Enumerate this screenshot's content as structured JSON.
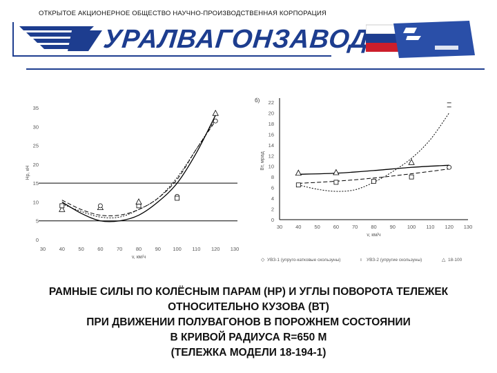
{
  "header": {
    "organization": "ОТКРЫТОЕ АКЦИОНЕРНОЕ ОБЩЕСТВО НАУЧНО-ПРОИЗВОДСТВЕННАЯ КОРПОРАЦИЯ",
    "brand": "УРАЛВАГОНЗАВОД",
    "brand_color": "#1d3d8f"
  },
  "chart_data": [
    {
      "type": "line",
      "title": "",
      "xlabel": "v, км/ч",
      "ylabel": "Нр, кН",
      "xlim": [
        30,
        130
      ],
      "ylim": [
        0,
        35
      ],
      "x_ticks": [
        "30",
        "40",
        "50",
        "60",
        "70",
        "80",
        "90",
        "100",
        "110",
        "120",
        "130"
      ],
      "y_ticks": [
        "0",
        "5",
        "10",
        "15",
        "20",
        "25",
        "30",
        "35"
      ],
      "reference_lines": [
        5,
        15
      ],
      "series": [
        {
          "style": "solid",
          "x": [
            40,
            50,
            60,
            70,
            80,
            90,
            100,
            110,
            120
          ],
          "values": [
            10,
            7,
            5,
            5,
            6.5,
            10,
            15,
            23,
            33
          ]
        },
        {
          "style": "dashed",
          "x": [
            40,
            50,
            60,
            70,
            80,
            90,
            100,
            110,
            120
          ],
          "values": [
            10.5,
            8,
            6.5,
            6.5,
            8,
            11,
            16,
            24,
            31.5
          ]
        },
        {
          "style": "dotted",
          "x": [
            40,
            50,
            60,
            70,
            80,
            90,
            100,
            110,
            120
          ],
          "values": [
            9.5,
            7.5,
            6,
            6,
            8,
            11,
            16.5,
            24,
            32
          ]
        }
      ],
      "markers": [
        {
          "shape": "triangle",
          "x": 120,
          "y": 33.5
        },
        {
          "shape": "circle",
          "x": 120,
          "y": 31.5
        },
        {
          "shape": "triangle",
          "x": 40,
          "y": 8
        },
        {
          "shape": "square",
          "x": 40,
          "y": 9
        },
        {
          "shape": "triangle",
          "x": 60,
          "y": 8.5
        },
        {
          "shape": "circle",
          "x": 60,
          "y": 9
        },
        {
          "shape": "square",
          "x": 80,
          "y": 9
        },
        {
          "shape": "triangle",
          "x": 80,
          "y": 10
        },
        {
          "shape": "circle",
          "x": 100,
          "y": 11.5
        },
        {
          "shape": "square",
          "x": 100,
          "y": 11
        }
      ]
    },
    {
      "type": "line",
      "title": "б)",
      "xlabel": "v, км/ч",
      "ylabel": "Вт, мрад",
      "xlim": [
        30,
        130
      ],
      "ylim": [
        0,
        22
      ],
      "x_ticks": [
        "30",
        "40",
        "50",
        "60",
        "70",
        "80",
        "90",
        "100",
        "110",
        "120",
        "130"
      ],
      "y_ticks": [
        "0",
        "2",
        "4",
        "6",
        "8",
        "10",
        "12",
        "14",
        "16",
        "18",
        "20",
        "22"
      ],
      "series": [
        {
          "style": "solid",
          "x": [
            40,
            60,
            80,
            100,
            120
          ],
          "values": [
            8.5,
            8.7,
            9.2,
            9.8,
            10.2
          ]
        },
        {
          "style": "dashed",
          "x": [
            40,
            60,
            80,
            100,
            120
          ],
          "values": [
            6.8,
            7.2,
            7.8,
            8.6,
            9.5
          ]
        },
        {
          "style": "dotted",
          "x": [
            40,
            50,
            60,
            70,
            80,
            90,
            100,
            110,
            120
          ],
          "values": [
            6.5,
            5.7,
            5.3,
            5.6,
            7,
            9,
            11.5,
            15,
            20
          ]
        }
      ],
      "markers": [
        {
          "shape": "triangle",
          "x": 40,
          "y": 8.7
        },
        {
          "shape": "triangle",
          "x": 60,
          "y": 8.8
        },
        {
          "shape": "triangle",
          "x": 100,
          "y": 10.7
        },
        {
          "shape": "square",
          "x": 40,
          "y": 6.5
        },
        {
          "shape": "square",
          "x": 60,
          "y": 7
        },
        {
          "shape": "square",
          "x": 80,
          "y": 7.2
        },
        {
          "shape": "square",
          "x": 100,
          "y": 8
        },
        {
          "shape": "circle",
          "x": 120,
          "y": 9.8
        },
        {
          "shape": "bar",
          "x": 120,
          "y": 21.5
        }
      ],
      "legend": {
        "placement": "bottom",
        "entries": [
          {
            "marker": "◇",
            "label": "УВЗ-1 (упруго-катковые скользуны)"
          },
          {
            "marker": "ı",
            "label": "УВЗ-2 (упругие скользуны)"
          },
          {
            "marker": "△",
            "label": "18-100"
          }
        ]
      }
    }
  ],
  "caption": {
    "line1": "РАМНЫЕ СИЛЫ ПО КОЛЁСНЫМ ПАРАМ (НР) И УГЛЫ ПОВОРОТА ТЕЛЕЖЕК",
    "line2": "ОТНОСИТЕЛЬНО КУЗОВА (ВТ)",
    "line3": "ПРИ ДВИЖЕНИИ ПОЛУВАГОНОВ В ПОРОЖНЕМ СОСТОЯНИИ",
    "line4": "В КРИВОЙ РАДИУСА R=650 М",
    "line5": "(ТЕЛЕЖКА МОДЕЛИ 18-194-1)"
  }
}
